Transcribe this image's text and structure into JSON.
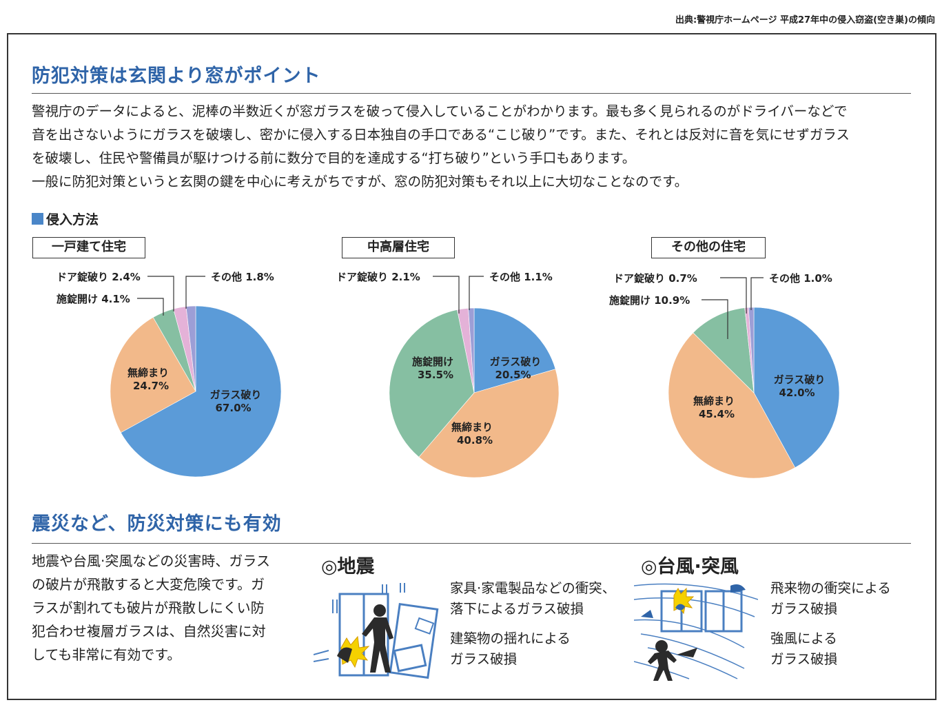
{
  "source": "出典:警視庁ホームページ 平成27年中の侵入窃盗(空き巣)の傾向",
  "section1": {
    "title": "防犯対策は玄関より窓がポイント",
    "paragraph_lines": [
      "警視庁のデータによると、泥棒の半数近くが窓ガラスを破って侵入していることがわかります。最も多く見られるのがドライバーなどで",
      "音を出さないようにガラスを破壊し、密かに侵入する日本独自の手口である“こじ破り”です。また、それとは反対に音を気にせずガラス",
      "を破壊し、住民や警備員が駆けつける前に数分で目的を達成する“打ち破り”という手口もあります。",
      "一般に防犯対策というと玄関の鍵を中心に考えがちですが、窓の防犯対策もそれ以上に大切なことなのです。"
    ],
    "chart_heading": "侵入方法"
  },
  "chart_data": [
    {
      "type": "pie",
      "title": "一戸建て住宅",
      "slices": [
        {
          "label": "ガラス破り",
          "value": 67.0,
          "value_text": "67.0%",
          "color": "#5b9bd8"
        },
        {
          "label": "無締まり",
          "value": 24.7,
          "value_text": "24.7%",
          "color": "#f2b98a"
        },
        {
          "label": "施錠開け",
          "value": 4.1,
          "value_text": "4.1%",
          "color": "#86bfa2"
        },
        {
          "label": "ドア錠破り",
          "value": 2.4,
          "value_text": "2.4%",
          "color": "#e4b2d8"
        },
        {
          "label": "その他",
          "value": 1.8,
          "value_text": "1.8%",
          "color": "#9c9ed6"
        }
      ]
    },
    {
      "type": "pie",
      "title": "中高層住宅",
      "slices": [
        {
          "label": "ガラス破り",
          "value": 20.5,
          "value_text": "20.5%",
          "color": "#5b9bd8"
        },
        {
          "label": "無締まり",
          "value": 40.8,
          "value_text": "40.8%",
          "color": "#f2b98a"
        },
        {
          "label": "施錠開け",
          "value": 35.5,
          "value_text": "35.5%",
          "color": "#86bfa2"
        },
        {
          "label": "ドア錠破り",
          "value": 2.1,
          "value_text": "2.1%",
          "color": "#e4b2d8"
        },
        {
          "label": "その他",
          "value": 1.1,
          "value_text": "1.1%",
          "color": "#9c9ed6"
        }
      ]
    },
    {
      "type": "pie",
      "title": "その他の住宅",
      "slices": [
        {
          "label": "ガラス破り",
          "value": 42.0,
          "value_text": "42.0%",
          "color": "#5b9bd8"
        },
        {
          "label": "無締まり",
          "value": 45.4,
          "value_text": "45.4%",
          "color": "#f2b98a"
        },
        {
          "label": "施錠開け",
          "value": 10.9,
          "value_text": "10.9%",
          "color": "#86bfa2"
        },
        {
          "label": "ドア錠破り",
          "value": 0.7,
          "value_text": "0.7%",
          "color": "#e4b2d8"
        },
        {
          "label": "その他",
          "value": 1.0,
          "value_text": "1.0%",
          "color": "#9c9ed6"
        }
      ]
    }
  ],
  "section2": {
    "title": "震災など、防災対策にも有効",
    "paragraph_lines": [
      "地震や台風·突風などの災害時、ガラス",
      "の破片が飛散すると大変危険です。ガ",
      "ラスが割れても破片が飛散しにくい防",
      "犯合わせ複層ガラスは、自然災害に対",
      "しても非常に有効です。"
    ],
    "earthquake": {
      "title": "◎地震",
      "note1": [
        "家具·家電製品などの衝突、",
        "落下によるガラス破損"
      ],
      "note2": [
        "建築物の揺れによる",
        "ガラス破損"
      ]
    },
    "typhoon": {
      "title": "◎台風·突風",
      "note1": [
        "飛来物の衝突による",
        "ガラス破損"
      ],
      "note2": [
        "強風による",
        "ガラス破損"
      ]
    }
  },
  "colors": {
    "heading": "#2f64a8",
    "glass": "#5b9bd8",
    "unlocked": "#f2b98a",
    "lockpick": "#86bfa2",
    "door": "#e4b2d8",
    "other": "#9c9ed6",
    "illustration": "#4a7fc1"
  }
}
